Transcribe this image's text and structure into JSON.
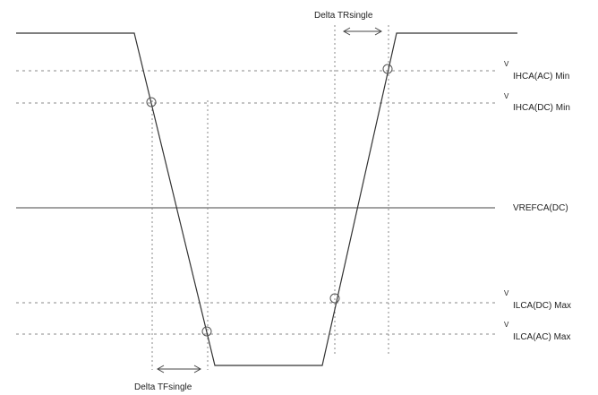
{
  "labels": {
    "delta_tr": "Delta TRsingle",
    "delta_tf": "Delta TFsingle",
    "vref": "VREFCA(DC)",
    "vih_ac": {
      "prefix": "V",
      "sub": "IHCA(AC)",
      "suffix": " Min"
    },
    "vih_dc": {
      "prefix": "V",
      "sub": "IHCA(DC)",
      "suffix": " Min"
    },
    "vil_dc": {
      "prefix": "V",
      "sub": "ILCA(DC)",
      "suffix": " Max"
    },
    "vil_ac": {
      "prefix": "V",
      "sub": "ILCA(AC)",
      "suffix": " Max"
    }
  },
  "colors": {
    "waveform": "#333333",
    "reference": "#444444",
    "dashed": "#888888",
    "marker": "#555555"
  }
}
